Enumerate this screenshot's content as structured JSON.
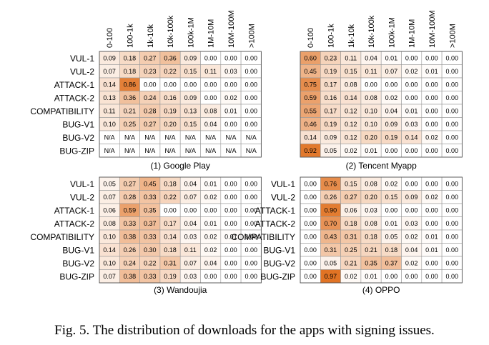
{
  "figure": {
    "caption": "Fig. 5.  The distribution of downloads for the apps with signing issues."
  },
  "chart_data": [
    {
      "type": "heatmap",
      "title": "(1) Google Play",
      "columns": [
        "0-100",
        "100-1k",
        "1k-10k",
        "10k-100k",
        "100k-1M",
        "1M-10M",
        "10M-100M",
        ">100M"
      ],
      "rows": [
        "VUL-1",
        "VUL-2",
        "ATTACK-1",
        "ATTACK-2",
        "COMPATIBILITY",
        "BUG-V1",
        "BUG-V2",
        "BUG-ZIP"
      ],
      "values": [
        [
          "0.09",
          "0.18",
          "0.27",
          "0.36",
          "0.09",
          "0.00",
          "0.00",
          "0.00"
        ],
        [
          "0.07",
          "0.18",
          "0.23",
          "0.22",
          "0.15",
          "0.11",
          "0.03",
          "0.00"
        ],
        [
          "0.14",
          "0.86",
          "0.00",
          "0.00",
          "0.00",
          "0.00",
          "0.00",
          "0.00"
        ],
        [
          "0.13",
          "0.36",
          "0.24",
          "0.16",
          "0.09",
          "0.00",
          "0.02",
          "0.00"
        ],
        [
          "0.11",
          "0.21",
          "0.28",
          "0.19",
          "0.13",
          "0.08",
          "0.01",
          "0.00"
        ],
        [
          "0.10",
          "0.25",
          "0.27",
          "0.20",
          "0.15",
          "0.04",
          "0.00",
          "0.00"
        ],
        [
          "N/A",
          "N/A",
          "N/A",
          "N/A",
          "N/A",
          "N/A",
          "N/A",
          "N/A"
        ],
        [
          "N/A",
          "N/A",
          "N/A",
          "N/A",
          "N/A",
          "N/A",
          "N/A",
          "N/A"
        ]
      ]
    },
    {
      "type": "heatmap",
      "title": "(2) Tencent Myapp",
      "columns": [
        "0-100",
        "100-1k",
        "1k-10k",
        "10k-100k",
        "100k-1M",
        "1M-10M",
        "10M-100M",
        ">100M"
      ],
      "rows": [
        "VUL-1",
        "VUL-2",
        "ATTACK-1",
        "ATTACK-2",
        "COMPATIBILITY",
        "BUG-V1",
        "BUG-V2",
        "BUG-ZIP"
      ],
      "values": [
        [
          "0.60",
          "0.23",
          "0.11",
          "0.04",
          "0.01",
          "0.00",
          "0.00",
          "0.00"
        ],
        [
          "0.45",
          "0.19",
          "0.15",
          "0.11",
          "0.07",
          "0.02",
          "0.01",
          "0.00"
        ],
        [
          "0.75",
          "0.17",
          "0.08",
          "0.00",
          "0.00",
          "0.00",
          "0.00",
          "0.00"
        ],
        [
          "0.59",
          "0.16",
          "0.14",
          "0.08",
          "0.02",
          "0.00",
          "0.00",
          "0.00"
        ],
        [
          "0.55",
          "0.17",
          "0.12",
          "0.10",
          "0.04",
          "0.01",
          "0.00",
          "0.00"
        ],
        [
          "0.46",
          "0.19",
          "0.12",
          "0.10",
          "0.09",
          "0.03",
          "0.00",
          "0.00"
        ],
        [
          "0.14",
          "0.09",
          "0.12",
          "0.20",
          "0.19",
          "0.14",
          "0.02",
          "0.00"
        ],
        [
          "0.92",
          "0.05",
          "0.02",
          "0.01",
          "0.00",
          "0.00",
          "0.00",
          "0.00"
        ]
      ]
    },
    {
      "type": "heatmap",
      "title": "(3) Wandoujia",
      "columns": [
        "0-100",
        "100-1k",
        "1k-10k",
        "10k-100k",
        "100k-1M",
        "1M-10M",
        "10M-100M",
        ">100M"
      ],
      "rows": [
        "VUL-1",
        "VUL-2",
        "ATTACK-1",
        "ATTACK-2",
        "COMPATIBILITY",
        "BUG-V1",
        "BUG-V2",
        "BUG-ZIP"
      ],
      "values": [
        [
          "0.05",
          "0.27",
          "0.45",
          "0.18",
          "0.04",
          "0.01",
          "0.00",
          "0.00"
        ],
        [
          "0.07",
          "0.28",
          "0.33",
          "0.22",
          "0.07",
          "0.02",
          "0.00",
          "0.00"
        ],
        [
          "0.06",
          "0.59",
          "0.35",
          "0.00",
          "0.00",
          "0.00",
          "0.00",
          "0.00"
        ],
        [
          "0.08",
          "0.33",
          "0.37",
          "0.17",
          "0.04",
          "0.01",
          "0.00",
          "0.00"
        ],
        [
          "0.10",
          "0.38",
          "0.33",
          "0.14",
          "0.03",
          "0.02",
          "0.01",
          "0.00"
        ],
        [
          "0.14",
          "0.26",
          "0.30",
          "0.18",
          "0.11",
          "0.02",
          "0.00",
          "0.00"
        ],
        [
          "0.10",
          "0.24",
          "0.22",
          "0.31",
          "0.07",
          "0.04",
          "0.00",
          "0.00"
        ],
        [
          "0.07",
          "0.38",
          "0.33",
          "0.19",
          "0.03",
          "0.00",
          "0.00",
          "0.00"
        ]
      ]
    },
    {
      "type": "heatmap",
      "title": "(4) OPPO",
      "columns": [
        "0-100",
        "100-1k",
        "1k-10k",
        "10k-100k",
        "100k-1M",
        "1M-10M",
        "10M-100M",
        ">100M"
      ],
      "rows": [
        "VUL-1",
        "VUL-2",
        "ATTACK-1",
        "ATTACK-2",
        "COMPATIBILITY",
        "BUG-V1",
        "BUG-V2",
        "BUG-ZIP"
      ],
      "values": [
        [
          "0.00",
          "0.76",
          "0.15",
          "0.08",
          "0.02",
          "0.00",
          "0.00",
          "0.00"
        ],
        [
          "0.00",
          "0.26",
          "0.27",
          "0.20",
          "0.15",
          "0.09",
          "0.02",
          "0.00"
        ],
        [
          "0.00",
          "0.90",
          "0.06",
          "0.03",
          "0.00",
          "0.00",
          "0.00",
          "0.00"
        ],
        [
          "0.00",
          "0.70",
          "0.18",
          "0.08",
          "0.01",
          "0.03",
          "0.00",
          "0.00"
        ],
        [
          "0.00",
          "0.43",
          "0.31",
          "0.18",
          "0.05",
          "0.02",
          "0.01",
          "0.00"
        ],
        [
          "0.00",
          "0.31",
          "0.25",
          "0.21",
          "0.18",
          "0.04",
          "0.01",
          "0.00"
        ],
        [
          "0.00",
          "0.05",
          "0.21",
          "0.35",
          "0.37",
          "0.02",
          "0.00",
          "0.00"
        ],
        [
          "0.00",
          "0.97",
          "0.02",
          "0.01",
          "0.00",
          "0.00",
          "0.00",
          "0.00"
        ]
      ]
    }
  ],
  "colors": {
    "low": "#ffffff",
    "high": "#e0701f",
    "grid": "#9a9a9a",
    "text": "#000000"
  }
}
